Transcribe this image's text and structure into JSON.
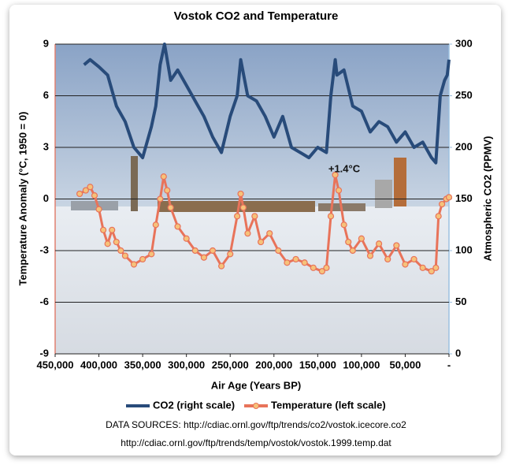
{
  "chart_data": {
    "type": "line",
    "title": "Vostok CO2 and Temperature",
    "x_label": "Air Age (Years BP)",
    "y_label": "Temperature Anomaly (°C, 1950 = 0)",
    "y2_label": "Atmospheric CO2 (PPMV)",
    "annotations": [
      "+1.4°C"
    ],
    "sources": [
      "DATA SOURCES: http://cdiac.ornl.gov/ftp/trends/co2/vostok.icecore.co2",
      "http://cdiac.ornl.gov/ftp/trends/temp/vostok/vostok.1999.temp.dat"
    ],
    "xlim": [
      450000,
      0
    ],
    "xticks": [
      {
        "value": 450000,
        "label": "450,000"
      },
      {
        "value": 400000,
        "label": "400,000"
      },
      {
        "value": 350000,
        "label": "350,000"
      },
      {
        "value": 300000,
        "label": "300,000"
      },
      {
        "value": 250000,
        "label": "250,000"
      },
      {
        "value": 200000,
        "label": "200,000"
      },
      {
        "value": 150000,
        "label": "150,000"
      },
      {
        "value": 100000,
        "label": "100,000"
      },
      {
        "value": 50000,
        "label": "50,000"
      },
      {
        "value": 0,
        "label": "-"
      }
    ],
    "ylim": [
      -9,
      9
    ],
    "yticks": [
      -9,
      -6,
      -3,
      0,
      3,
      6,
      9
    ],
    "y2lim": [
      0,
      300
    ],
    "y2ticks": [
      0,
      50,
      100,
      150,
      200,
      250,
      300
    ],
    "grid": true,
    "legend": "bottom",
    "series": [
      {
        "name": "CO2 (right scale)",
        "color": "#284b7a",
        "axis": "y2",
        "markers": false,
        "x": [
          417000,
          410000,
          400000,
          390000,
          380000,
          370000,
          360000,
          350000,
          340000,
          335000,
          330000,
          325000,
          318000,
          310000,
          300000,
          290000,
          280000,
          270000,
          260000,
          250000,
          242000,
          238000,
          230000,
          220000,
          210000,
          200000,
          190000,
          180000,
          170000,
          160000,
          150000,
          140000,
          135000,
          130000,
          128000,
          120000,
          110000,
          100000,
          90000,
          80000,
          70000,
          60000,
          50000,
          40000,
          30000,
          20000,
          15000,
          10000,
          5000,
          2000,
          0
        ],
        "values": [
          280,
          285,
          278,
          270,
          240,
          225,
          200,
          190,
          220,
          240,
          280,
          300,
          265,
          275,
          260,
          245,
          230,
          210,
          195,
          230,
          250,
          285,
          250,
          245,
          230,
          210,
          230,
          200,
          195,
          190,
          200,
          195,
          250,
          285,
          270,
          275,
          240,
          235,
          215,
          225,
          220,
          205,
          215,
          200,
          205,
          190,
          185,
          250,
          265,
          270,
          285
        ]
      },
      {
        "name": "Temperature (left scale)",
        "color": "#e8735a",
        "axis": "y",
        "markers": true,
        "x": [
          422000,
          415000,
          410000,
          405000,
          400000,
          395000,
          390000,
          385000,
          380000,
          375000,
          370000,
          360000,
          350000,
          340000,
          335000,
          330000,
          326000,
          322000,
          318000,
          310000,
          300000,
          290000,
          280000,
          270000,
          260000,
          250000,
          242000,
          238000,
          235000,
          230000,
          222000,
          215000,
          205000,
          195000,
          185000,
          175000,
          165000,
          155000,
          145000,
          140000,
          135000,
          130000,
          126000,
          120000,
          115000,
          110000,
          100000,
          90000,
          80000,
          70000,
          60000,
          50000,
          40000,
          30000,
          20000,
          15000,
          12000,
          8000,
          3000,
          0
        ],
        "values": [
          0.3,
          0.5,
          0.7,
          0.2,
          -0.6,
          -1.8,
          -2.6,
          -1.8,
          -2.5,
          -3.0,
          -3.3,
          -3.8,
          -3.5,
          -3.2,
          -1.5,
          0.0,
          1.3,
          0.5,
          -0.5,
          -1.6,
          -2.3,
          -3.0,
          -3.4,
          -3.0,
          -3.9,
          -3.2,
          -1.0,
          0.3,
          -0.5,
          -2.0,
          -1.0,
          -2.5,
          -2.0,
          -3.0,
          -3.7,
          -3.5,
          -3.7,
          -4.0,
          -4.2,
          -4.0,
          -1.0,
          1.4,
          0.5,
          -1.5,
          -2.5,
          -3.0,
          -2.3,
          -3.3,
          -2.6,
          -3.5,
          -2.7,
          -3.8,
          -3.5,
          -4.0,
          -4.2,
          -4.0,
          -1.0,
          -0.3,
          0.0,
          0.1
        ]
      }
    ]
  }
}
